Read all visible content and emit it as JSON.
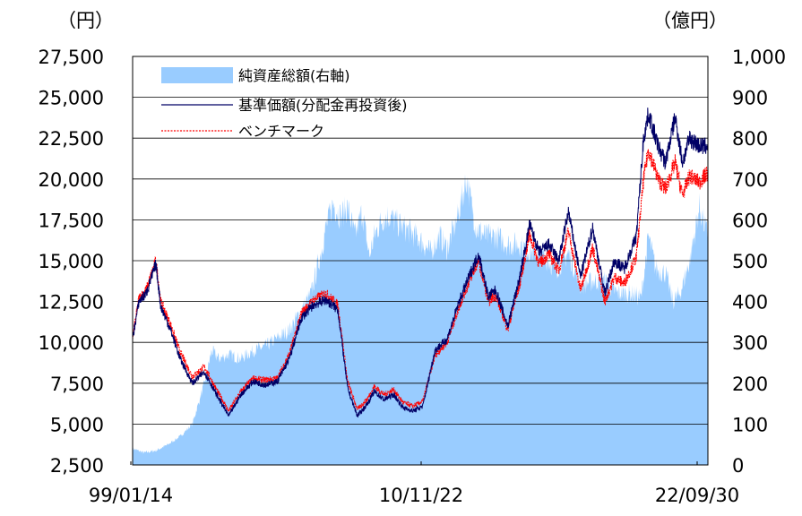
{
  "chart_data": {
    "type": "line",
    "left_unit": "（円）",
    "right_unit": "（億円）",
    "x_labels": [
      "99/01/14",
      "10/11/22",
      "22/09/30"
    ],
    "y_left_ticks": [
      "27,500",
      "25,000",
      "22,500",
      "20,000",
      "17,500",
      "15,000",
      "12,500",
      "10,000",
      "7,500",
      "5,000",
      "2,500"
    ],
    "y_right_ticks": [
      "1,000",
      "900",
      "800",
      "700",
      "600",
      "500",
      "400",
      "300",
      "200",
      "100",
      "0"
    ],
    "y_left_range": [
      2500,
      27500
    ],
    "y_right_range": [
      0,
      1000
    ],
    "x_range": [
      1999.04,
      2022.75
    ],
    "grid": "horizontal",
    "legend_position": "top-left",
    "colors": {
      "area": "#99ccff",
      "nav": "#000066",
      "benchmark": "#ff0000"
    },
    "series": [
      {
        "name": "純資産総額(右軸)",
        "axis": "right",
        "style": "area",
        "x": [
          1999.04,
          1999.5,
          2000.0,
          2000.5,
          2001.0,
          2001.5,
          2002.0,
          2002.3,
          2002.6,
          2003.0,
          2003.5,
          2004.0,
          2004.5,
          2005.0,
          2005.5,
          2006.0,
          2006.4,
          2006.8,
          2007.0,
          2007.3,
          2007.6,
          2007.9,
          2008.2,
          2008.5,
          2008.8,
          2009.0,
          2009.3,
          2009.6,
          2010.0,
          2010.5,
          2010.9,
          2011.3,
          2011.7,
          2012.0,
          2012.4,
          2012.8,
          2013.2,
          2013.6,
          2014.0,
          2014.5,
          2015.0,
          2015.5,
          2016.0,
          2016.5,
          2017.0,
          2017.5,
          2018.0,
          2018.5,
          2019.0,
          2019.5,
          2020.0,
          2020.3,
          2020.6,
          2021.0,
          2021.3,
          2021.6,
          2022.0,
          2022.4,
          2022.75
        ],
        "values": [
          40,
          30,
          35,
          50,
          70,
          100,
          200,
          280,
          260,
          270,
          260,
          280,
          290,
          310,
          330,
          380,
          420,
          520,
          580,
          640,
          610,
          630,
          560,
          620,
          510,
          560,
          600,
          610,
          590,
          570,
          550,
          520,
          560,
          530,
          600,
          700,
          580,
          560,
          560,
          540,
          540,
          520,
          510,
          480,
          520,
          440,
          450,
          450,
          420,
          420,
          410,
          560,
          480,
          470,
          400,
          420,
          500,
          630,
          560
        ]
      },
      {
        "name": "基準価額(分配金再投資後)",
        "axis": "left",
        "style": "line",
        "x": [
          1999.04,
          1999.3,
          1999.6,
          2000.0,
          2000.2,
          2000.6,
          2001.0,
          2001.5,
          2002.0,
          2002.5,
          2003.0,
          2003.5,
          2004.0,
          2004.5,
          2005.0,
          2005.5,
          2006.0,
          2006.5,
          2007.0,
          2007.5,
          2007.9,
          2008.3,
          2008.7,
          2009.0,
          2009.4,
          2009.8,
          2010.2,
          2010.6,
          2011.0,
          2011.5,
          2012.0,
          2012.5,
          2012.9,
          2013.3,
          2013.7,
          2014.0,
          2014.5,
          2015.0,
          2015.4,
          2015.8,
          2016.2,
          2016.6,
          2017.0,
          2017.5,
          2018.0,
          2018.5,
          2018.9,
          2019.3,
          2019.8,
          2020.1,
          2020.3,
          2020.7,
          2021.0,
          2021.4,
          2021.7,
          2022.0,
          2022.4,
          2022.75
        ],
        "values": [
          10200,
          12500,
          13000,
          14800,
          12200,
          10800,
          9000,
          7500,
          8200,
          6800,
          5500,
          6800,
          7600,
          7400,
          7600,
          9000,
          11500,
          12300,
          12600,
          12000,
          7200,
          5500,
          6200,
          7000,
          6500,
          6800,
          6000,
          5800,
          6100,
          9500,
          10200,
          12500,
          14000,
          15400,
          12800,
          13200,
          11000,
          14000,
          17200,
          15500,
          16000,
          15000,
          18000,
          14000,
          17000,
          13000,
          15000,
          14500,
          16500,
          22500,
          24000,
          22000,
          21000,
          23800,
          21000,
          22500,
          22000,
          22000
        ]
      },
      {
        "name": "ベンチマーク",
        "axis": "left",
        "style": "dotted",
        "x": [
          1999.04,
          1999.3,
          1999.6,
          2000.0,
          2000.2,
          2000.6,
          2001.0,
          2001.5,
          2002.0,
          2002.5,
          2003.0,
          2003.5,
          2004.0,
          2004.5,
          2005.0,
          2005.5,
          2006.0,
          2006.5,
          2007.0,
          2007.5,
          2007.9,
          2008.3,
          2008.7,
          2009.0,
          2009.4,
          2009.8,
          2010.2,
          2010.6,
          2011.0,
          2011.5,
          2012.0,
          2012.5,
          2012.9,
          2013.3,
          2013.7,
          2014.0,
          2014.5,
          2015.0,
          2015.4,
          2015.8,
          2016.2,
          2016.6,
          2017.0,
          2017.5,
          2018.0,
          2018.5,
          2018.9,
          2019.3,
          2019.8,
          2020.1,
          2020.3,
          2020.7,
          2021.0,
          2021.4,
          2021.7,
          2022.0,
          2022.4,
          2022.75
        ],
        "values": [
          10300,
          12700,
          13200,
          15000,
          12500,
          11100,
          9400,
          7900,
          8500,
          7100,
          5800,
          7000,
          7800,
          7700,
          7800,
          9300,
          11800,
          12600,
          13000,
          12300,
          7600,
          5900,
          6500,
          7300,
          6800,
          7100,
          6300,
          6100,
          6400,
          9200,
          10000,
          12200,
          13700,
          15000,
          12500,
          12900,
          10800,
          13600,
          16600,
          14800,
          15400,
          14400,
          16800,
          13200,
          15800,
          12500,
          14000,
          13600,
          15200,
          20000,
          21800,
          20000,
          19400,
          21000,
          19000,
          20200,
          19800,
          20400
        ]
      }
    ]
  }
}
